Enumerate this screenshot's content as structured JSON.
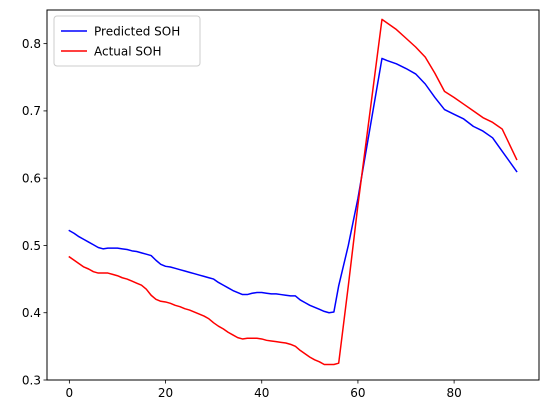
{
  "chart_data": {
    "type": "line",
    "title": "",
    "xlabel": "",
    "ylabel": "",
    "xlim": [
      -4.65,
      97.65
    ],
    "ylim": [
      0.3,
      0.85
    ],
    "xticks": [
      0,
      20,
      40,
      60,
      80
    ],
    "yticks": [
      0.3,
      0.4,
      0.5,
      0.6,
      0.7,
      0.8
    ],
    "xtick_labels": [
      "0",
      "20",
      "40",
      "60",
      "80"
    ],
    "ytick_labels": [
      "0.3",
      "0.4",
      "0.5",
      "0.6",
      "0.7",
      "0.8"
    ],
    "grid": false,
    "legend": {
      "position": "top-left"
    },
    "series": [
      {
        "name": "Predicted SOH",
        "color": "#0000ff",
        "x": [
          0,
          1,
          2,
          3,
          4,
          5,
          6,
          7,
          8,
          9,
          10,
          11,
          12,
          13,
          14,
          15,
          16,
          17,
          18,
          19,
          20,
          21,
          22,
          23,
          24,
          25,
          26,
          27,
          28,
          29,
          30,
          31,
          32,
          33,
          34,
          35,
          36,
          37,
          38,
          39,
          40,
          41,
          42,
          43,
          44,
          45,
          46,
          47,
          48,
          49,
          50,
          51,
          52,
          53,
          54,
          55,
          56,
          58,
          60,
          65,
          66,
          68,
          70,
          72,
          74,
          76,
          78,
          80,
          82,
          84,
          86,
          88,
          90,
          93
        ],
        "values": [
          0.522,
          0.518,
          0.513,
          0.509,
          0.505,
          0.501,
          0.497,
          0.495,
          0.496,
          0.496,
          0.496,
          0.495,
          0.494,
          0.492,
          0.491,
          0.489,
          0.487,
          0.485,
          0.478,
          0.472,
          0.469,
          0.468,
          0.466,
          0.464,
          0.462,
          0.46,
          0.458,
          0.456,
          0.454,
          0.452,
          0.45,
          0.445,
          0.441,
          0.437,
          0.433,
          0.43,
          0.427,
          0.427,
          0.429,
          0.43,
          0.43,
          0.429,
          0.428,
          0.428,
          0.427,
          0.426,
          0.425,
          0.425,
          0.419,
          0.415,
          0.411,
          0.408,
          0.405,
          0.402,
          0.4,
          0.401,
          0.44,
          0.5,
          0.57,
          0.778,
          0.775,
          0.77,
          0.763,
          0.755,
          0.74,
          0.72,
          0.702,
          0.695,
          0.688,
          0.677,
          0.67,
          0.66,
          0.64,
          0.61
        ]
      },
      {
        "name": "Actual SOH",
        "color": "#ff0000",
        "x": [
          0,
          1,
          2,
          3,
          4,
          5,
          6,
          7,
          8,
          9,
          10,
          11,
          12,
          13,
          14,
          15,
          16,
          17,
          18,
          19,
          20,
          21,
          22,
          23,
          24,
          25,
          26,
          27,
          28,
          29,
          30,
          31,
          32,
          33,
          34,
          35,
          36,
          37,
          38,
          39,
          40,
          41,
          42,
          43,
          44,
          45,
          46,
          47,
          48,
          49,
          50,
          51,
          52,
          53,
          54,
          55,
          56,
          58,
          60,
          65,
          66,
          68,
          70,
          72,
          74,
          76,
          78,
          80,
          82,
          84,
          86,
          88,
          90,
          93
        ],
        "values": [
          0.483,
          0.478,
          0.473,
          0.468,
          0.465,
          0.461,
          0.459,
          0.459,
          0.459,
          0.457,
          0.455,
          0.452,
          0.45,
          0.447,
          0.444,
          0.441,
          0.435,
          0.426,
          0.42,
          0.417,
          0.416,
          0.414,
          0.411,
          0.409,
          0.406,
          0.404,
          0.401,
          0.398,
          0.395,
          0.391,
          0.385,
          0.38,
          0.376,
          0.371,
          0.367,
          0.363,
          0.361,
          0.362,
          0.362,
          0.362,
          0.361,
          0.359,
          0.358,
          0.357,
          0.356,
          0.355,
          0.353,
          0.35,
          0.344,
          0.339,
          0.334,
          0.33,
          0.327,
          0.323,
          0.323,
          0.323,
          0.325,
          0.44,
          0.56,
          0.836,
          0.831,
          0.821,
          0.808,
          0.795,
          0.78,
          0.756,
          0.729,
          0.72,
          0.71,
          0.7,
          0.69,
          0.683,
          0.673,
          0.628
        ]
      }
    ]
  }
}
